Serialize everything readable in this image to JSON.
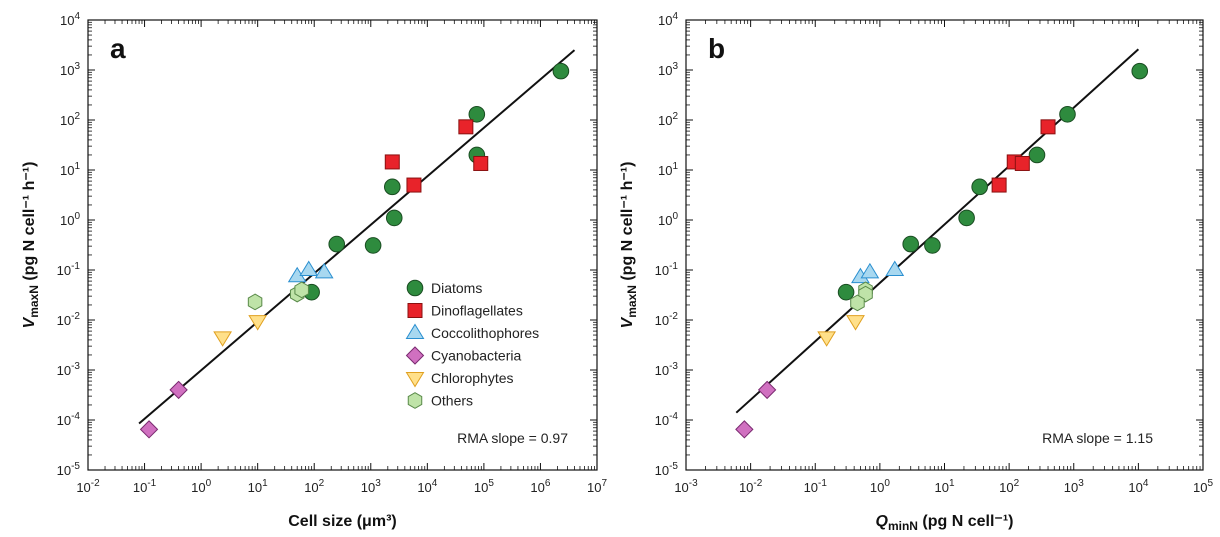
{
  "colors": {
    "Diatoms": "#2e8b3e",
    "Dinoflagellates": "#e8232a",
    "Coccolithophores": "#a8d8f0",
    "Cyanobacteria": "#d070c0",
    "Chlorophytes": "#ffe08a",
    "Others": "#bfe3a8"
  },
  "edge_colors": {
    "Diatoms": "#1a4d22",
    "Dinoflagellates": "#8a1010",
    "Coccolithophores": "#2a8fd0",
    "Cyanobacteria": "#7a2a70",
    "Chlorophytes": "#e0a020",
    "Others": "#5a8a4a"
  },
  "legend": [
    "Diatoms",
    "Dinoflagellates",
    "Coccolithophores",
    "Cyanobacteria",
    "Chlorophytes",
    "Others"
  ],
  "chart_data": [
    {
      "type": "scatter",
      "panel_label": "a",
      "xlabel": "Cell size (μm³)",
      "ylabel": "VmaxN (pg N cell⁻¹ h⁻¹)",
      "xscale": "log",
      "yscale": "log",
      "xlim": [
        0.01,
        10000000
      ],
      "ylim": [
        1e-05,
        10000
      ],
      "annotation": "RMA slope = 0.97",
      "legend_position": "lower-right",
      "fit_line": [
        [
          0.08,
          8.5e-05
        ],
        [
          4000000,
          2500
        ]
      ],
      "series": [
        {
          "name": "Diatoms",
          "marker": "circle",
          "points": [
            [
              2300000,
              950
            ],
            [
              75000,
              130
            ],
            [
              75000,
              20
            ],
            [
              2400,
              4.6
            ],
            [
              2600,
              1.1
            ],
            [
              1100,
              0.31
            ],
            [
              250,
              0.33
            ],
            [
              90,
              0.036
            ]
          ]
        },
        {
          "name": "Dinoflagellates",
          "marker": "square",
          "points": [
            [
              48000,
              73
            ],
            [
              2400,
              14.5
            ],
            [
              5800,
              5
            ],
            [
              88000,
              13.5
            ]
          ]
        },
        {
          "name": "Coccolithophores",
          "marker": "triangle-up",
          "points": [
            [
              50,
              0.075
            ],
            [
              80,
              0.1
            ],
            [
              150,
              0.09
            ]
          ]
        },
        {
          "name": "Cyanobacteria",
          "marker": "diamond",
          "points": [
            [
              0.4,
              0.0004
            ],
            [
              0.12,
              6.5e-05
            ]
          ]
        },
        {
          "name": "Chlorophytes",
          "marker": "triangle-down",
          "points": [
            [
              2.4,
              0.0045
            ],
            [
              10,
              0.0095
            ]
          ]
        },
        {
          "name": "Others",
          "marker": "hexagon",
          "points": [
            [
              9,
              0.023
            ],
            [
              50,
              0.033
            ],
            [
              60,
              0.04
            ]
          ]
        }
      ]
    },
    {
      "type": "scatter",
      "panel_label": "b",
      "xlabel": "QminN (pg N cell⁻¹)",
      "ylabel": "VmaxN (pg N cell⁻¹ h⁻¹)",
      "xscale": "log",
      "yscale": "log",
      "xlim": [
        0.001,
        100000
      ],
      "ylim": [
        1e-05,
        10000
      ],
      "annotation": "RMA slope = 1.15",
      "fit_line": [
        [
          0.006,
          0.00014
        ],
        [
          10000,
          2600
        ]
      ],
      "series": [
        {
          "name": "Diatoms",
          "marker": "circle",
          "points": [
            [
              10500,
              950
            ],
            [
              800,
              130
            ],
            [
              270,
              20
            ],
            [
              35,
              4.6
            ],
            [
              22,
              1.1
            ],
            [
              6.5,
              0.31
            ],
            [
              3,
              0.33
            ],
            [
              0.3,
              0.036
            ]
          ]
        },
        {
          "name": "Dinoflagellates",
          "marker": "square",
          "points": [
            [
              400,
              73
            ],
            [
              120,
              14.5
            ],
            [
              160,
              13.5
            ],
            [
              70,
              5
            ]
          ]
        },
        {
          "name": "Coccolithophores",
          "marker": "triangle-up",
          "points": [
            [
              0.5,
              0.072
            ],
            [
              0.7,
              0.09
            ],
            [
              1.7,
              0.1
            ]
          ]
        },
        {
          "name": "Cyanobacteria",
          "marker": "diamond",
          "points": [
            [
              0.018,
              0.0004
            ],
            [
              0.008,
              6.5e-05
            ]
          ]
        },
        {
          "name": "Chlorophytes",
          "marker": "triangle-down",
          "points": [
            [
              0.15,
              0.0045
            ],
            [
              0.42,
              0.0095
            ]
          ]
        },
        {
          "name": "Others",
          "marker": "hexagon",
          "points": [
            [
              0.6,
              0.04
            ],
            [
              0.6,
              0.033
            ],
            [
              0.45,
              0.022
            ]
          ]
        }
      ]
    }
  ]
}
